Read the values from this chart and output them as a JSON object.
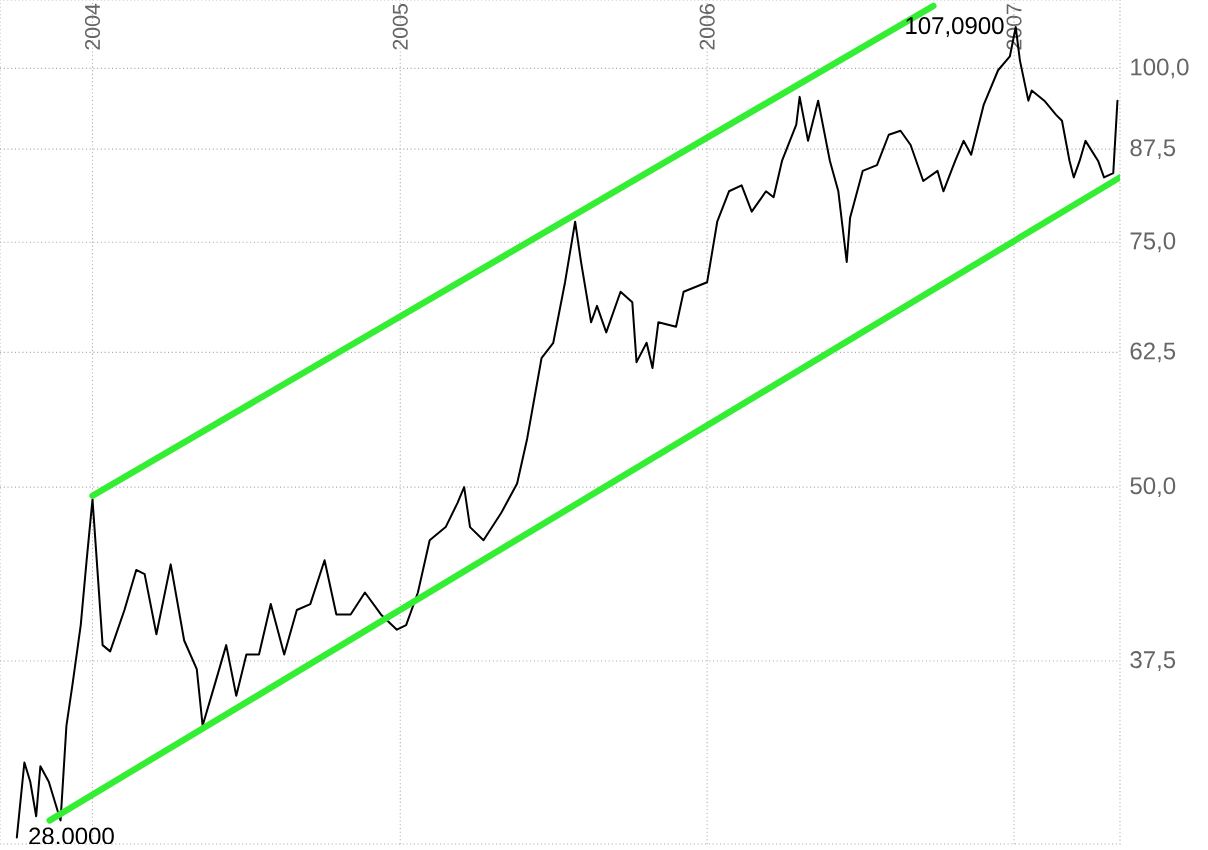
{
  "chart_data": {
    "type": "line",
    "log": true,
    "grid": true,
    "xlim": [
      "2003-09-13",
      "2007-05-07"
    ],
    "xticks": [
      {
        "value": "2004-01-01",
        "label": "2004"
      },
      {
        "value": "2005-01-01",
        "label": "2005"
      },
      {
        "value": "2006-01-01",
        "label": "2006"
      },
      {
        "value": "2007-01-01",
        "label": "2007"
      }
    ],
    "ylim": [
      27.7,
      112
    ],
    "yticks": [
      {
        "value": 37.5,
        "label": "37,5"
      },
      {
        "value": 50,
        "label": "50,0"
      },
      {
        "value": 62.5,
        "label": "62,5"
      },
      {
        "value": 75,
        "label": "75,0"
      },
      {
        "value": 87.5,
        "label": "87,5"
      },
      {
        "value": 100,
        "label": "100,0"
      }
    ],
    "series": [
      {
        "color": "#000000",
        "x": [
          "2003-10-03",
          "2003-10-12",
          "2003-10-19",
          "2003-10-26",
          "2003-10-31",
          "2003-11-10",
          "2003-11-24",
          "2003-12-01",
          "2003-12-08",
          "2003-12-18",
          "2003-12-25",
          "2004-01-01",
          "2004-01-08",
          "2004-01-13",
          "2004-01-22",
          "2004-02-08",
          "2004-02-22",
          "2004-03-03",
          "2004-03-17",
          "2004-04-03",
          "2004-04-19",
          "2004-05-04",
          "2004-05-11",
          "2004-05-25",
          "2004-06-08",
          "2004-06-20",
          "2004-07-02",
          "2004-07-17",
          "2004-07-31",
          "2004-08-16",
          "2004-08-31",
          "2004-09-16",
          "2004-10-03",
          "2004-10-17",
          "2004-11-03",
          "2004-11-20",
          "2004-12-09",
          "2004-12-28",
          "2005-01-08",
          "2005-01-22",
          "2005-02-05",
          "2005-02-24",
          "2005-03-10",
          "2005-03-18",
          "2005-03-25",
          "2005-04-10",
          "2005-05-01",
          "2005-05-20",
          "2005-06-01",
          "2005-06-18",
          "2005-07-02",
          "2005-07-16",
          "2005-07-28",
          "2005-08-04",
          "2005-08-16",
          "2005-08-23",
          "2005-09-03",
          "2005-09-20",
          "2005-10-04",
          "2005-10-09",
          "2005-10-21",
          "2005-10-28",
          "2005-11-04",
          "2005-11-25",
          "2005-12-04",
          "2006-01-01",
          "2006-01-13",
          "2006-01-27",
          "2006-02-11",
          "2006-02-23",
          "2006-03-12",
          "2006-03-21",
          "2006-03-31",
          "2006-04-17",
          "2006-04-21",
          "2006-05-01",
          "2006-05-13",
          "2006-05-27",
          "2006-06-06",
          "2006-06-16",
          "2006-06-20",
          "2006-07-05",
          "2006-07-22",
          "2006-08-05",
          "2006-08-19",
          "2006-08-31",
          "2006-09-15",
          "2006-10-02",
          "2006-10-09",
          "2006-10-23",
          "2006-11-02",
          "2006-11-11",
          "2006-11-26",
          "2006-12-13",
          "2006-12-27",
          "2007-01-03",
          "2007-01-08",
          "2007-01-13",
          "2007-01-18",
          "2007-01-22",
          "2007-02-06",
          "2007-02-20",
          "2007-02-27",
          "2007-03-08",
          "2007-03-13",
          "2007-03-20",
          "2007-03-27",
          "2007-04-11",
          "2007-04-18",
          "2007-04-29",
          "2007-05-04"
        ],
        "values": [
          28.0,
          31.7,
          30.7,
          29.0,
          31.5,
          30.7,
          28.8,
          33.7,
          36.0,
          39.8,
          44.3,
          49.0,
          42.6,
          38.5,
          38.1,
          40.8,
          43.6,
          43.3,
          39.2,
          44.0,
          38.8,
          37.0,
          33.7,
          36.0,
          38.5,
          35.4,
          37.9,
          37.9,
          41.2,
          37.9,
          40.8,
          41.2,
          44.3,
          40.5,
          40.5,
          42.0,
          40.5,
          39.5,
          39.8,
          42.0,
          45.8,
          46.8,
          48.7,
          50.0,
          46.8,
          45.8,
          47.9,
          50.3,
          54.2,
          61.9,
          63.5,
          70.2,
          77.6,
          72.6,
          65.7,
          67.5,
          64.6,
          69.1,
          67.9,
          61.5,
          63.5,
          60.9,
          65.7,
          65.2,
          69.1,
          70.2,
          77.6,
          81.6,
          82.4,
          78.9,
          81.6,
          80.8,
          85.8,
          91.1,
          95.4,
          88.7,
          94.8,
          85.8,
          81.6,
          72.6,
          78.1,
          84.4,
          85.2,
          89.6,
          90.2,
          88.1,
          83.0,
          84.4,
          81.6,
          85.8,
          88.7,
          86.7,
          94.2,
          99.7,
          102.0,
          107.09,
          101.3,
          98.0,
          94.8,
          96.4,
          94.8,
          92.6,
          91.7,
          85.8,
          83.5,
          85.8,
          88.7,
          85.8,
          83.5,
          84.1,
          94.8
        ]
      },
      {
        "type": "line",
        "color": "#33ee33",
        "x": [
          "2004-01-01",
          "2006-09-27"
        ],
        "values": [
          49.3,
          110.9
        ]
      },
      {
        "type": "line",
        "color": "#33ee33",
        "x": [
          "2003-11-11",
          "2007-05-07"
        ],
        "values": [
          28.8,
          83.5
        ]
      }
    ],
    "annotations": [
      {
        "text": "107,0900",
        "x": "2007-01-03",
        "y": 107.09
      },
      {
        "text": "28,0000",
        "x": "2003-10-03",
        "y": 28.0
      }
    ]
  }
}
